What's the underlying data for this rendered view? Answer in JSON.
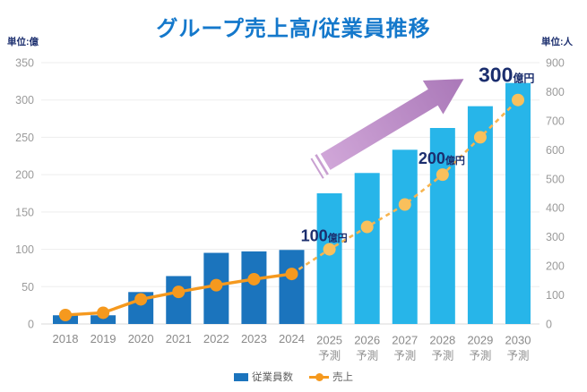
{
  "header": {
    "title": "グループ売上高/従業員推移"
  },
  "chart_data": {
    "type": "combo",
    "title": "グループ売上高/従業員推移",
    "categories": [
      "2018",
      "2019",
      "2020",
      "2021",
      "2022",
      "2023",
      "2024",
      "2025",
      "2026",
      "2027",
      "2028",
      "2029",
      "2030"
    ],
    "forecast_label": "予測",
    "forecast_start_index": 7,
    "series": [
      {
        "name": "従業員数",
        "type": "bar",
        "axis": "right",
        "values": [
          30,
          30,
          110,
          165,
          245,
          250,
          255,
          450,
          520,
          600,
          675,
          750,
          830
        ],
        "color_actual": "#1b74bd",
        "color_forecast": "#27b5e9"
      },
      {
        "name": "売上",
        "type": "line",
        "axis": "left",
        "values": [
          12,
          15,
          33,
          43,
          52,
          60,
          67,
          100,
          130,
          160,
          200,
          250,
          300
        ],
        "color_actual": "#f5991e",
        "color_forecast": "#f7b44f",
        "dot_color_forecast": "#f9c05c"
      }
    ],
    "left_axis": {
      "title": "単位:億",
      "min": 0,
      "max": 350,
      "step": 50,
      "ticks": [
        "0",
        "50",
        "100",
        "150",
        "200",
        "250",
        "300",
        "350"
      ]
    },
    "right_axis": {
      "title": "単位:人",
      "min": 0,
      "max": 900,
      "step": 100,
      "ticks": [
        "0",
        "100",
        "200",
        "300",
        "400",
        "500",
        "600",
        "700",
        "800",
        "900"
      ]
    },
    "annotations": [
      {
        "index": 7,
        "value": "100",
        "suffix": "億円"
      },
      {
        "index": 10,
        "value": "200",
        "suffix": "億円"
      },
      {
        "index": 12,
        "value": "300",
        "suffix": "億円"
      }
    ],
    "grid": true,
    "legend_position": "bottom",
    "colors": {
      "title": "#1478cb",
      "annotation_text": "#1b2e6e",
      "gridline": "#ededed",
      "tick_label": "#9b9b9b",
      "arrow_gradient_start": "#d0a6d8",
      "arrow_gradient_end": "#aa78b8"
    }
  },
  "legend": {
    "items": [
      {
        "label": "従業員数",
        "swatch": "bar-swatch"
      },
      {
        "label": "売上",
        "swatch": "line-dot-swatch"
      }
    ]
  }
}
